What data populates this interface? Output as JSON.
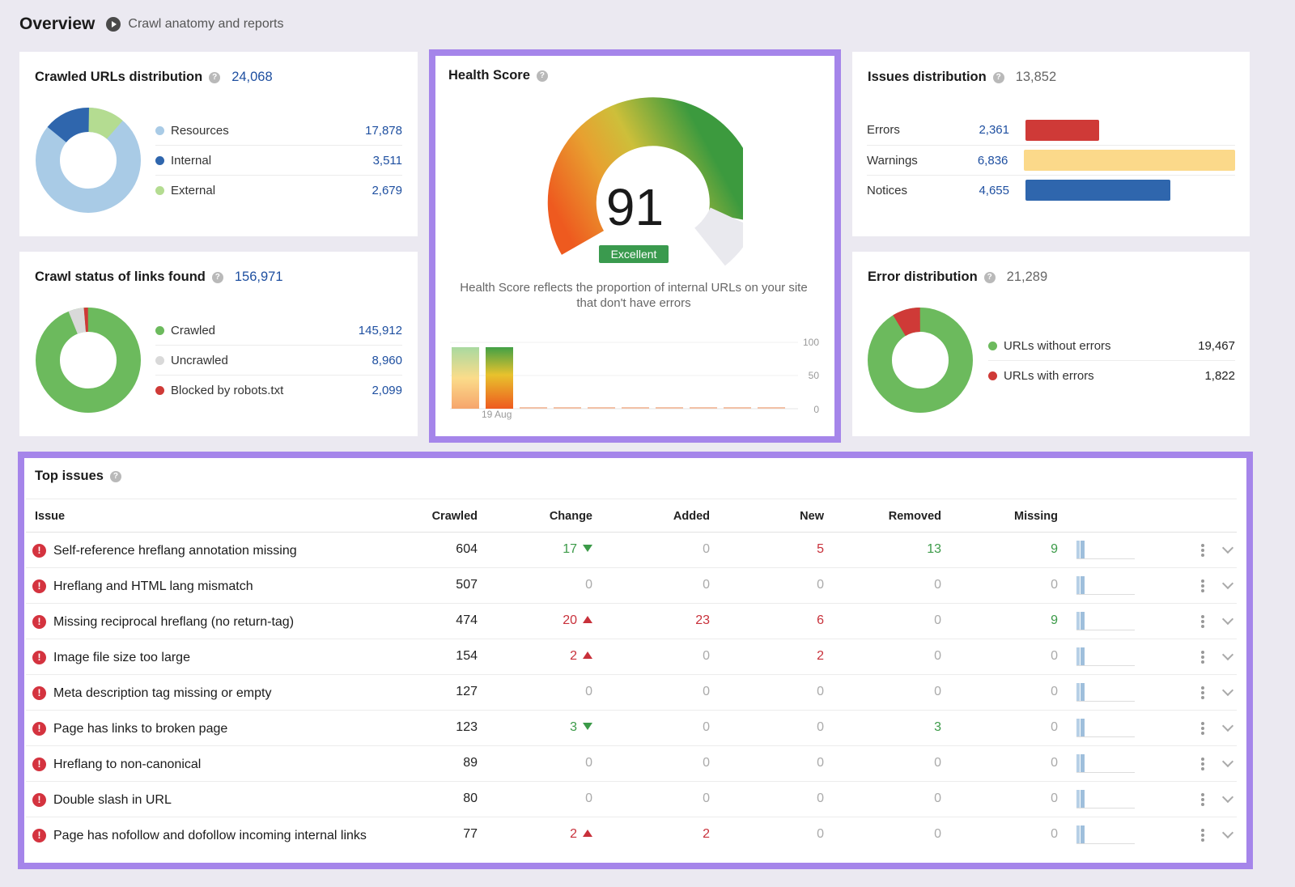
{
  "header": {
    "title": "Overview",
    "link_label": "Crawl anatomy and reports"
  },
  "crawled_urls": {
    "title": "Crawled URLs distribution",
    "total": "24,068",
    "items": [
      {
        "label": "Resources",
        "value": "17,878",
        "color": "#a9cbe6"
      },
      {
        "label": "Internal",
        "value": "3,511",
        "color": "#2f66ad"
      },
      {
        "label": "External",
        "value": "2,679",
        "color": "#b4dc91"
      }
    ]
  },
  "crawl_status": {
    "title": "Crawl status of links found",
    "total": "156,971",
    "items": [
      {
        "label": "Crawled",
        "value": "145,912",
        "color": "#6cba5d"
      },
      {
        "label": "Uncrawled",
        "value": "8,960",
        "color": "#d9d9d9"
      },
      {
        "label": "Blocked by robots.txt",
        "value": "2,099",
        "color": "#cf3a37"
      }
    ]
  },
  "health_score": {
    "title": "Health Score",
    "score": "91",
    "badge": "Excellent",
    "description": "Health Score reflects the proportion of internal URLs on your site that don't have errors",
    "y_ticks": [
      "100",
      "50",
      "0"
    ],
    "date_label": "19 Aug"
  },
  "issues_distribution": {
    "title": "Issues distribution",
    "total": "13,852",
    "items": [
      {
        "label": "Errors",
        "value": "2,361",
        "color": "#cf3a37"
      },
      {
        "label": "Warnings",
        "value": "6,836",
        "color": "#fbd98a"
      },
      {
        "label": "Notices",
        "value": "4,655",
        "color": "#2f66ad"
      }
    ]
  },
  "error_distribution": {
    "title": "Error distribution",
    "total": "21,289",
    "items": [
      {
        "label": "URLs without errors",
        "value": "19,467",
        "color": "#6cba5d"
      },
      {
        "label": "URLs with errors",
        "value": "1,822",
        "color": "#cf3a37"
      }
    ]
  },
  "top_issues": {
    "title": "Top issues",
    "columns": {
      "issue": "Issue",
      "crawled": "Crawled",
      "change": "Change",
      "added": "Added",
      "new": "New",
      "removed": "Removed",
      "missing": "Missing"
    },
    "rows": [
      {
        "issue": "Self-reference hreflang annotation missing",
        "crawled": "604",
        "change": "17",
        "change_dir": "down",
        "added": "0",
        "new": "5",
        "removed": "13",
        "missing": "9"
      },
      {
        "issue": "Hreflang and HTML lang mismatch",
        "crawled": "507",
        "change": "0",
        "change_dir": "none",
        "added": "0",
        "new": "0",
        "removed": "0",
        "missing": "0"
      },
      {
        "issue": "Missing reciprocal hreflang (no return-tag)",
        "crawled": "474",
        "change": "20",
        "change_dir": "up",
        "added": "23",
        "new": "6",
        "removed": "0",
        "missing": "9"
      },
      {
        "issue": "Image file size too large",
        "crawled": "154",
        "change": "2",
        "change_dir": "up",
        "added": "0",
        "new": "2",
        "removed": "0",
        "missing": "0"
      },
      {
        "issue": "Meta description tag missing or empty",
        "crawled": "127",
        "change": "0",
        "change_dir": "none",
        "added": "0",
        "new": "0",
        "removed": "0",
        "missing": "0"
      },
      {
        "issue": "Page has links to broken page",
        "crawled": "123",
        "change": "3",
        "change_dir": "down",
        "added": "0",
        "new": "0",
        "removed": "3",
        "missing": "0"
      },
      {
        "issue": "Hreflang to non-canonical",
        "crawled": "89",
        "change": "0",
        "change_dir": "none",
        "added": "0",
        "new": "0",
        "removed": "0",
        "missing": "0"
      },
      {
        "issue": "Double slash in URL",
        "crawled": "80",
        "change": "0",
        "change_dir": "none",
        "added": "0",
        "new": "0",
        "removed": "0",
        "missing": "0"
      },
      {
        "issue": "Page has nofollow and dofollow incoming internal links",
        "crawled": "77",
        "change": "2",
        "change_dir": "up",
        "added": "2",
        "new": "0",
        "removed": "0",
        "missing": "0"
      }
    ]
  }
}
